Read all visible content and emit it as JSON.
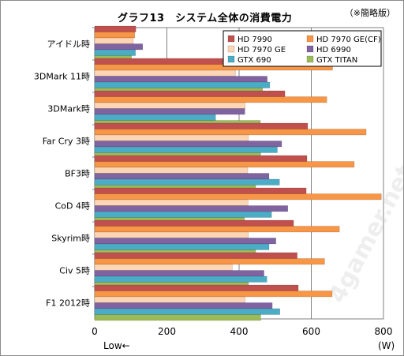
{
  "chart_data": {
    "type": "bar",
    "orientation": "horizontal",
    "title": "グラフ13　システム全体の消費電力",
    "note": "（※簡略版）",
    "categories": [
      "アイドル時",
      "3DMark 11時",
      "3DMark時",
      "Far Cry 3時",
      "BF3時",
      "CoD 4時",
      "Skyrim時",
      "Civ 5時",
      "F1 2012時"
    ],
    "series": [
      {
        "name": "HD 7990",
        "color": "#c0504d",
        "values": [
          114,
          549,
          527,
          590,
          588,
          586,
          551,
          561,
          564
        ]
      },
      {
        "name": "HD 7970 GE(CF)",
        "color": "#f79646",
        "values": [
          111,
          659,
          643,
          752,
          719,
          794,
          678,
          637,
          658
        ]
      },
      {
        "name": "HD 7970 GE",
        "color": "#fcd5b5",
        "values": [
          107,
          390,
          417,
          426,
          424,
          425,
          426,
          381,
          417
        ]
      },
      {
        "name": "HD 6990",
        "color": "#8064a2",
        "values": [
          133,
          478,
          416,
          518,
          483,
          535,
          502,
          469,
          492
        ]
      },
      {
        "name": "GTX 690",
        "color": "#4bacc6",
        "values": [
          113,
          485,
          335,
          506,
          512,
          490,
          483,
          477,
          513
        ]
      },
      {
        "name": "GTX TITAN",
        "color": "#9bbb59",
        "values": [
          102,
          465,
          459,
          460,
          446,
          415,
          446,
          426,
          460
        ]
      }
    ],
    "xlim": [
      0,
      800
    ],
    "xticks": [
      0,
      200,
      400,
      600,
      800
    ],
    "xlabel": "(W)",
    "low_label": "Low←",
    "legend_position": "top-right",
    "watermark": "4gamer.net"
  }
}
